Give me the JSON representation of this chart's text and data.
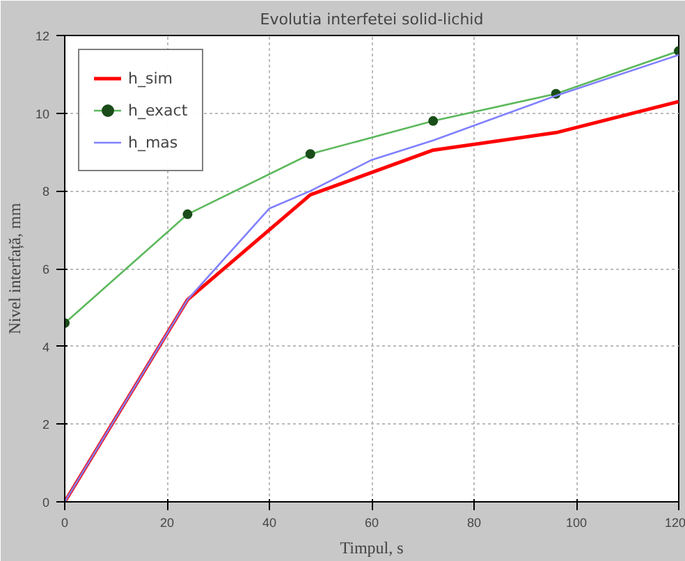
{
  "chart_data": {
    "type": "line",
    "title": "Evolutia interfetei solid-lichid",
    "xlabel": "Timpul, s",
    "ylabel": "Nivel interfață, mm",
    "xlim": [
      0,
      120
    ],
    "ylim": [
      0,
      12
    ],
    "xticks": [
      0,
      20,
      40,
      60,
      80,
      100,
      120
    ],
    "yticks": [
      0,
      2,
      4,
      6,
      8,
      10,
      12
    ],
    "grid": true,
    "legend": "top left",
    "series": [
      {
        "name": "h_sim",
        "color": "#ff0000",
        "x": [
          0,
          24,
          48,
          72,
          96,
          120
        ],
        "values": [
          0,
          5.2,
          7.9,
          9.05,
          9.5,
          10.3
        ],
        "marker": "none"
      },
      {
        "name": "h_exact",
        "color": "#5cb85c",
        "x": [
          0,
          24,
          48,
          72,
          96,
          120
        ],
        "values": [
          4.6,
          7.4,
          8.95,
          9.8,
          10.5,
          11.6
        ],
        "marker": "circle"
      },
      {
        "name": "h_mas",
        "color": "#8080ff",
        "x": [
          0,
          24,
          40,
          48,
          60,
          72,
          96,
          120
        ],
        "values": [
          0,
          5.2,
          7.55,
          8.0,
          8.8,
          9.3,
          10.45,
          11.5
        ],
        "marker": "none"
      }
    ]
  }
}
